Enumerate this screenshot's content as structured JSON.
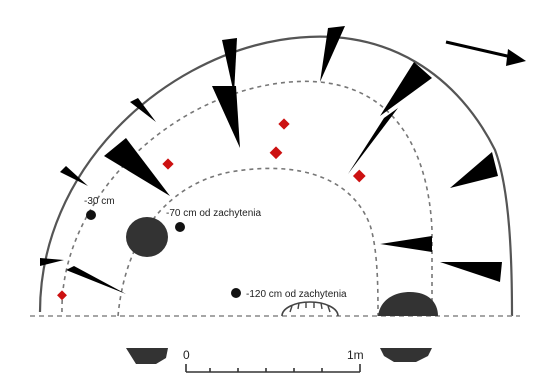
{
  "figure": {
    "labels": {
      "depth_30": "-30 cm",
      "depth_70": "-70 cm od zachytenia",
      "depth_120": "-120 cm od zachytenia"
    },
    "scale_bar": {
      "start_label": "0",
      "end_label": "1m"
    },
    "north_arrow": {
      "icon": "north-arrow-icon"
    },
    "colors": {
      "outline": "#555555",
      "wedge_fill": "#000000",
      "finds_red": "#cc1111",
      "stone_fill": "#333333"
    }
  }
}
